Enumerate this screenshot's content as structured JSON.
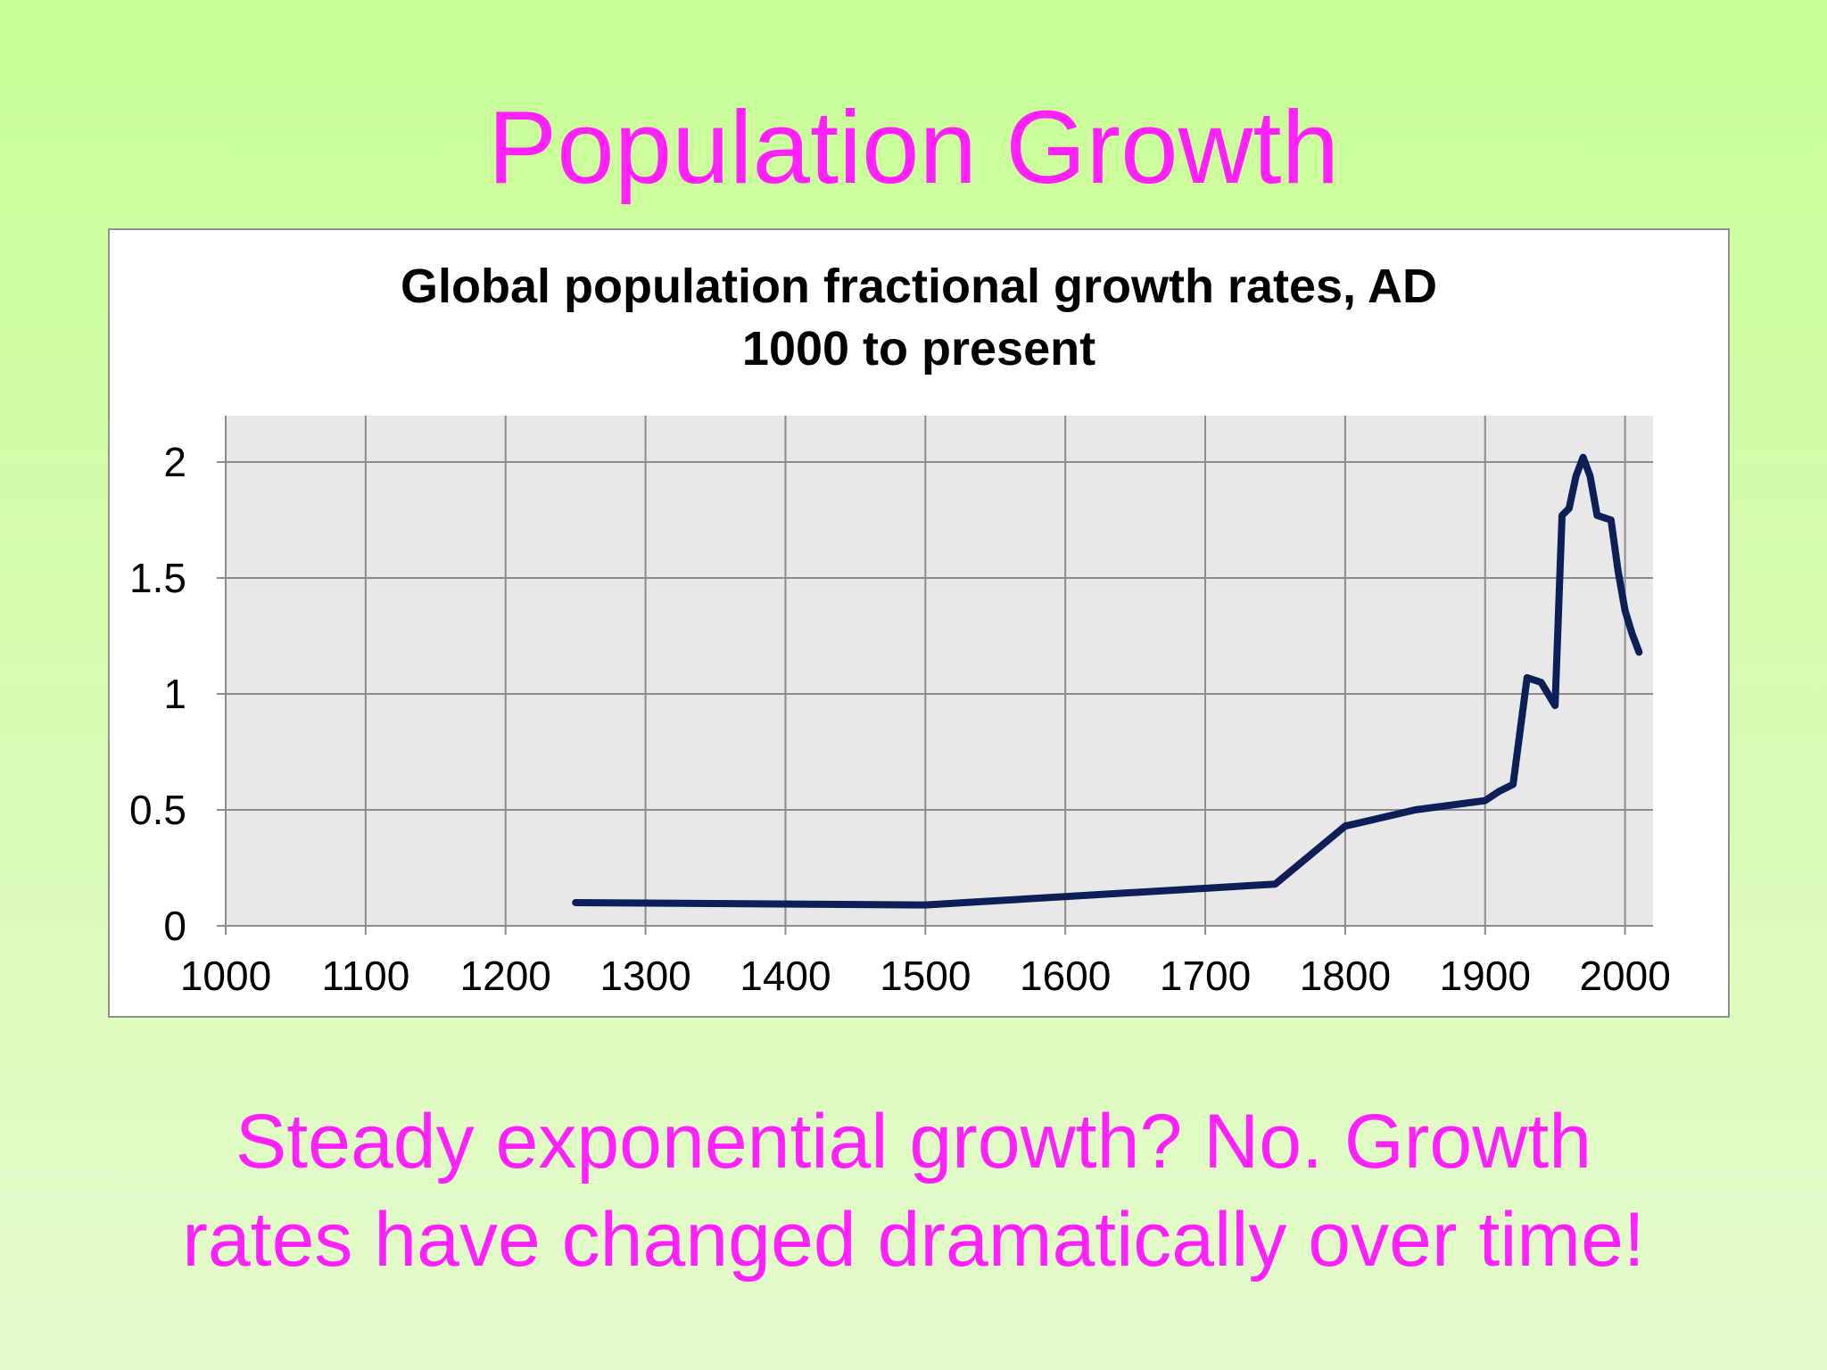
{
  "slide": {
    "title": "Population Growth",
    "caption_line1": "Steady exponential growth? No. Growth",
    "caption_line2": "rates have changed dramatically over time!",
    "accent_color": "#ff22ff"
  },
  "chart_data": {
    "type": "line",
    "title_line1": "Global population fractional growth rates, AD",
    "title_line2": "1000 to present",
    "xlabel": "",
    "ylabel": "",
    "xlim": [
      1000,
      2020
    ],
    "ylim": [
      0,
      2.2
    ],
    "x_ticks": [
      1000,
      1100,
      1200,
      1300,
      1400,
      1500,
      1600,
      1700,
      1800,
      1900,
      2000
    ],
    "y_ticks": [
      0,
      0.5,
      1,
      1.5,
      2
    ],
    "x_tick_labels": [
      "1000",
      "1100",
      "1200",
      "1300",
      "1400",
      "1500",
      "1600",
      "1700",
      "1800",
      "1900",
      "2000"
    ],
    "y_tick_labels": [
      "0",
      "0.5",
      "1",
      "1.5",
      "2"
    ],
    "grid": true,
    "line_color": "#0d1f57",
    "plot_background": "#e8e8e8",
    "series": [
      {
        "x": [
          1250,
          1500,
          1750,
          1800,
          1850,
          1875,
          1900,
          1910,
          1920,
          1930,
          1940,
          1950,
          1955,
          1960,
          1965,
          1970,
          1975,
          1980,
          1985,
          1990,
          1995,
          2000,
          2005,
          2010
        ],
        "y": [
          0.1,
          0.09,
          0.18,
          0.43,
          0.5,
          0.52,
          0.54,
          0.58,
          0.61,
          1.07,
          1.05,
          0.95,
          1.77,
          1.8,
          1.94,
          2.02,
          1.94,
          1.77,
          1.76,
          1.75,
          1.53,
          1.36,
          1.26,
          1.18
        ]
      }
    ]
  }
}
